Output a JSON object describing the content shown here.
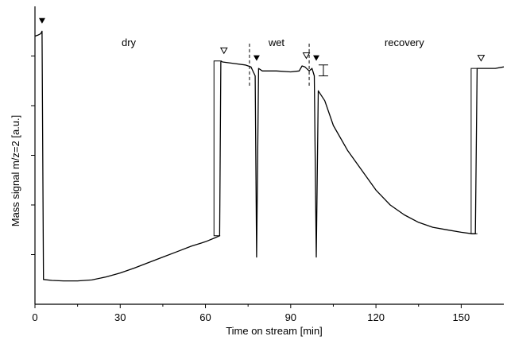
{
  "chart_data": {
    "type": "line",
    "title": "",
    "xlabel": "Time on stream [min]",
    "ylabel": "Mass signal m/z=2 [a.u.]",
    "xlim": [
      0,
      165
    ],
    "ylim": [
      0,
      6
    ],
    "xticks": [
      0,
      30,
      60,
      90,
      120,
      150
    ],
    "xtick_labels": [
      "0",
      "30",
      "60",
      "90",
      "120",
      "150"
    ],
    "yticks": [
      1,
      2,
      3,
      4,
      5
    ],
    "ytick_labels": [
      "",
      "",
      "",
      "",
      ""
    ],
    "grid": false,
    "legend": "none",
    "line_color": "#000000",
    "series": [
      {
        "values": [
          [
            0,
            5.4
          ],
          [
            1,
            5.42
          ],
          [
            2,
            5.45
          ],
          [
            2.5,
            5.5
          ],
          [
            3,
            0.5
          ],
          [
            6,
            0.48
          ],
          [
            10,
            0.47
          ],
          [
            15,
            0.47
          ],
          [
            20,
            0.49
          ],
          [
            25,
            0.55
          ],
          [
            30,
            0.63
          ],
          [
            35,
            0.73
          ],
          [
            40,
            0.84
          ],
          [
            45,
            0.95
          ],
          [
            50,
            1.06
          ],
          [
            55,
            1.17
          ],
          [
            60,
            1.26
          ],
          [
            63,
            1.33
          ],
          [
            65,
            1.38
          ],
          [
            65.4,
            4.9
          ],
          [
            66,
            4.88
          ],
          [
            70,
            4.85
          ],
          [
            74,
            4.82
          ],
          [
            76,
            4.78
          ],
          [
            77.5,
            4.6
          ],
          [
            78,
            0.95
          ],
          [
            78.7,
            4.75
          ],
          [
            80,
            4.7
          ],
          [
            85,
            4.7
          ],
          [
            90,
            4.68
          ],
          [
            93,
            4.7
          ],
          [
            94,
            4.8
          ],
          [
            95,
            4.78
          ],
          [
            96.5,
            4.7
          ],
          [
            97.5,
            4.75
          ],
          [
            98.3,
            4.6
          ],
          [
            99,
            0.95
          ],
          [
            99.7,
            4.3
          ],
          [
            102,
            4.1
          ],
          [
            105,
            3.6
          ],
          [
            110,
            3.1
          ],
          [
            115,
            2.7
          ],
          [
            120,
            2.3
          ],
          [
            125,
            2.0
          ],
          [
            130,
            1.8
          ],
          [
            135,
            1.65
          ],
          [
            140,
            1.55
          ],
          [
            145,
            1.5
          ],
          [
            150,
            1.45
          ],
          [
            154,
            1.42
          ],
          [
            155,
            1.42
          ],
          [
            155.6,
            4.75
          ],
          [
            158,
            4.75
          ],
          [
            162,
            4.75
          ],
          [
            165,
            4.78
          ]
        ]
      }
    ],
    "annotations": {
      "region_labels": [
        {
          "text": "dry",
          "x": 33,
          "y": 5.2
        },
        {
          "text": "wet",
          "x": 85,
          "y": 5.2
        },
        {
          "text": "recovery",
          "x": 130,
          "y": 5.2
        }
      ],
      "filled_markers": [
        {
          "x": 2.5,
          "y": 5.7
        },
        {
          "x": 78,
          "y": 4.95
        },
        {
          "x": 99,
          "y": 4.95
        }
      ],
      "open_markers": [
        {
          "x": 66.5,
          "y": 5.1
        },
        {
          "x": 95.5,
          "y": 5.0
        },
        {
          "x": 157,
          "y": 4.95
        }
      ],
      "dashed_vlines": [
        {
          "x": 75.5,
          "y0": 4.4,
          "y1": 5.25
        },
        {
          "x": 96.5,
          "y0": 4.4,
          "y1": 5.25
        }
      ],
      "brackets": [
        {
          "x": 63,
          "y0": 1.38,
          "y1": 4.9
        },
        {
          "x": 153.5,
          "y0": 1.42,
          "y1": 4.75
        }
      ],
      "small_bracket": {
        "x": 101.5,
        "y0": 4.6,
        "y1": 4.82
      }
    }
  }
}
